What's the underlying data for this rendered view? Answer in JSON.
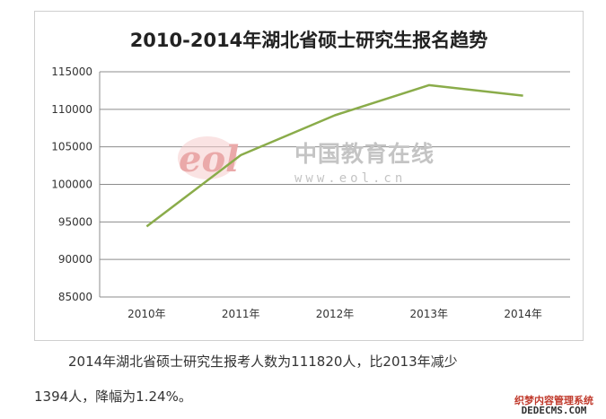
{
  "chart_data": {
    "type": "line",
    "title": "2010-2014年湖北省硕士研究生报名趋势",
    "categories": [
      "2010年",
      "2011年",
      "2012年",
      "2013年",
      "2014年"
    ],
    "series": [
      {
        "values": [
          94400,
          103900,
          109200,
          113214,
          111820
        ],
        "color": "#8aac4a"
      }
    ],
    "ylim": [
      85000,
      115000
    ],
    "yticks": [
      85000,
      90000,
      95000,
      100000,
      105000,
      110000,
      115000
    ],
    "grid": "horizontal",
    "legend": "none"
  },
  "watermark": {
    "logo_text": "eol",
    "site_name": "中国教育在线",
    "url": "www.eol.cn"
  },
  "caption": {
    "line1": "2014年湖北省硕士研究生报考人数为111820人，比2013年减少",
    "line2": "1394人，降幅为1.24%。"
  },
  "corner_badge": {
    "line1": "织梦内容管理系统",
    "line2": "DEDECMS.COM"
  }
}
